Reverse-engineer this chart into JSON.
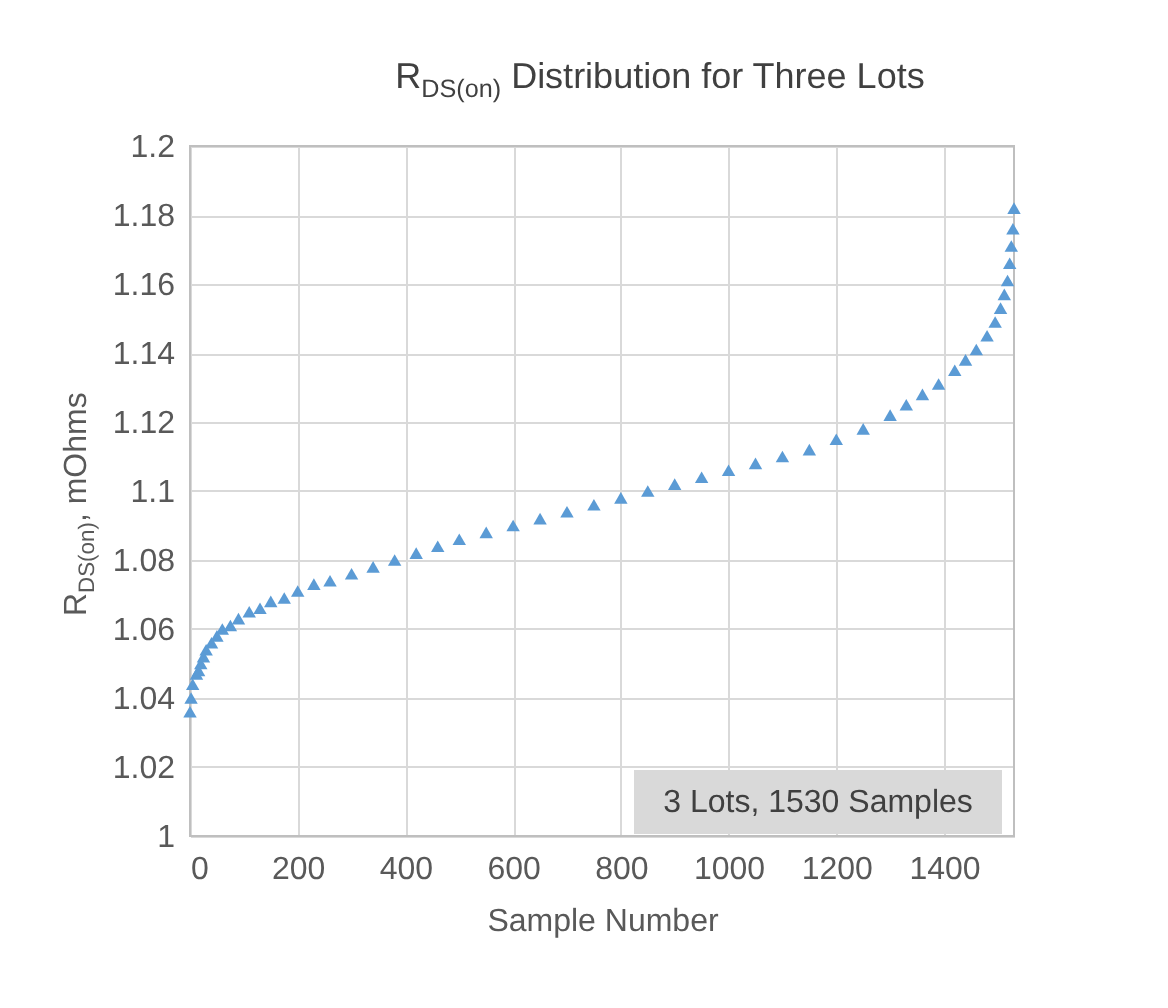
{
  "chart_data": {
    "type": "scatter",
    "title": "R$_{DS(on)}$ Distribution for Three Lots",
    "xlabel": "Sample Number",
    "ylabel": "R$_{DS(on)}$, mOhms",
    "annotations": [
      "3 Lots, 1530 Samples"
    ],
    "x": [
      0,
      2,
      5,
      12,
      16,
      20,
      25,
      30,
      40,
      50,
      60,
      75,
      90,
      110,
      130,
      150,
      175,
      200,
      230,
      260,
      300,
      340,
      380,
      420,
      460,
      500,
      550,
      600,
      650,
      700,
      750,
      800,
      850,
      900,
      950,
      1000,
      1050,
      1100,
      1150,
      1200,
      1250,
      1300,
      1330,
      1360,
      1390,
      1420,
      1440,
      1460,
      1480,
      1495,
      1505,
      1512,
      1518,
      1522,
      1525,
      1528,
      1530
    ],
    "series": [
      {
        "color": "#5b9bd5",
        "values": [
          1.036,
          1.04,
          1.044,
          1.047,
          1.048,
          1.05,
          1.052,
          1.054,
          1.056,
          1.058,
          1.06,
          1.061,
          1.063,
          1.065,
          1.066,
          1.068,
          1.069,
          1.071,
          1.073,
          1.074,
          1.076,
          1.078,
          1.08,
          1.082,
          1.084,
          1.086,
          1.088,
          1.09,
          1.092,
          1.094,
          1.096,
          1.098,
          1.1,
          1.102,
          1.104,
          1.106,
          1.108,
          1.11,
          1.112,
          1.115,
          1.118,
          1.122,
          1.125,
          1.128,
          1.131,
          1.135,
          1.138,
          1.141,
          1.145,
          1.149,
          1.153,
          1.157,
          1.161,
          1.166,
          1.171,
          1.176,
          1.182
        ]
      }
    ],
    "xlim": [
      0,
      1530
    ],
    "xticks": [
      0,
      200,
      400,
      600,
      800,
      1000,
      1200,
      1400
    ],
    "ylim": [
      1,
      1.2
    ],
    "yticks": [
      1,
      1.02,
      1.04,
      1.06,
      1.08,
      1.1,
      1.12,
      1.14,
      1.16,
      1.18,
      1.2
    ],
    "grid": true,
    "marker": "triangle"
  }
}
